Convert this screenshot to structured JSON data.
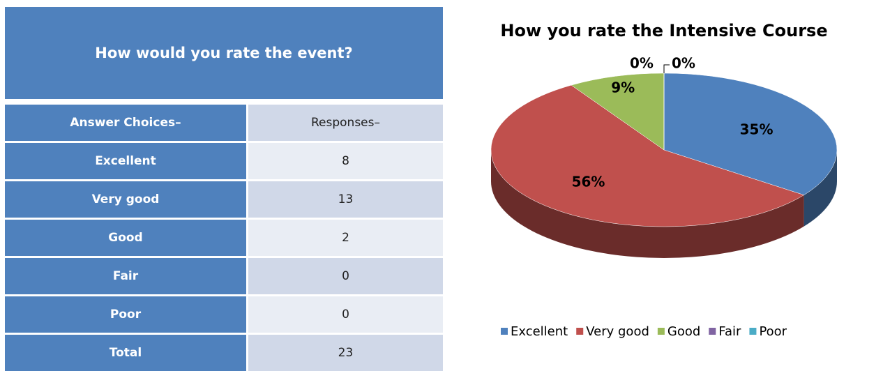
{
  "table": {
    "title": "How would you rate the event?",
    "columns": [
      "Answer Choices–",
      "Responses–"
    ],
    "rows": [
      [
        "Excellent",
        8
      ],
      [
        "Very good",
        13
      ],
      [
        "Good",
        2
      ],
      [
        "Fair",
        0
      ],
      [
        "Poor",
        0
      ],
      [
        "Total",
        23
      ]
    ]
  },
  "chart_data": {
    "type": "pie",
    "title": "How you rate the Intensive Course",
    "categories": [
      "Excellent",
      "Very good",
      "Good",
      "Fair",
      "Poor"
    ],
    "values": [
      35,
      56,
      9,
      0,
      0
    ],
    "value_labels": [
      "35%",
      "56%",
      "9%",
      "0%",
      "0%"
    ],
    "colors": [
      "#4f81bd",
      "#c0504d",
      "#9bbb59",
      "#8064a2",
      "#4bacc6"
    ],
    "legend": "bottom"
  }
}
